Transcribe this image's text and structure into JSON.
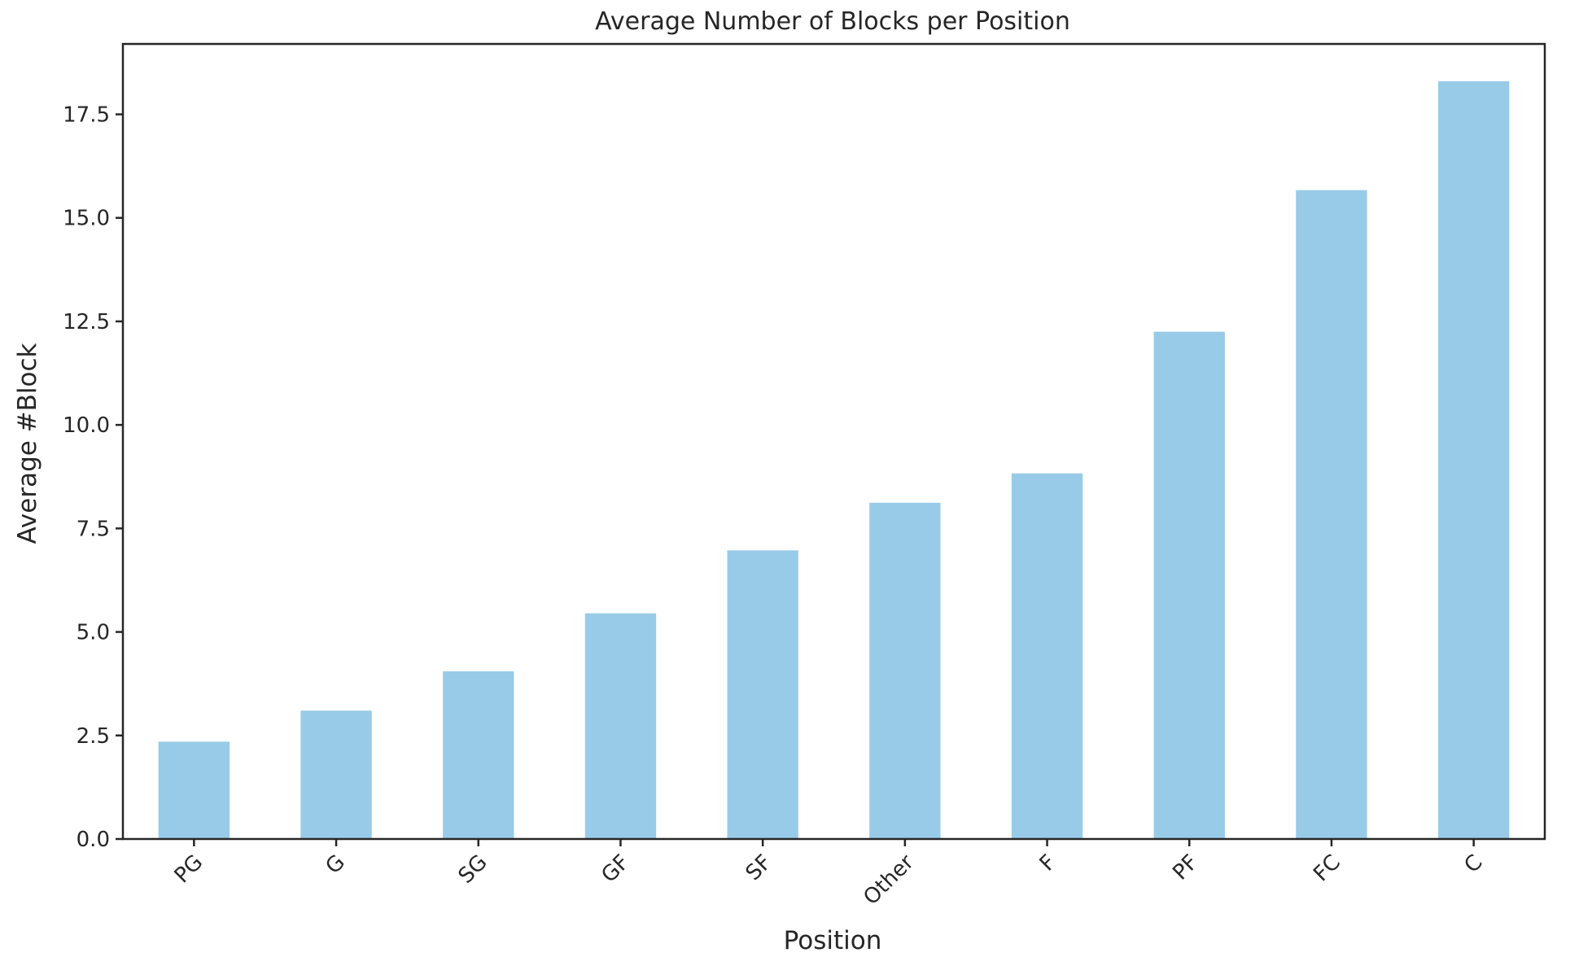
{
  "chart_data": {
    "type": "bar",
    "title": "Average Number of Blocks per Position",
    "xlabel": "Position",
    "ylabel": "Average #Block",
    "categories": [
      "PG",
      "G",
      "SG",
      "GF",
      "SF",
      "Other",
      "F",
      "PF",
      "FC",
      "C"
    ],
    "values": [
      2.35,
      3.1,
      4.05,
      5.45,
      6.97,
      8.12,
      8.83,
      12.25,
      15.67,
      18.3
    ],
    "ylim": [
      0,
      19.2
    ],
    "yticks": [
      "0.0",
      "2.5",
      "5.0",
      "7.5",
      "10.0",
      "12.5",
      "15.0",
      "17.5"
    ],
    "ytick_values": [
      0,
      2.5,
      5,
      7.5,
      10,
      12.5,
      15,
      17.5
    ],
    "grid": false,
    "bar_color": "#98cbe8",
    "xtick_rotation_deg": 45
  }
}
